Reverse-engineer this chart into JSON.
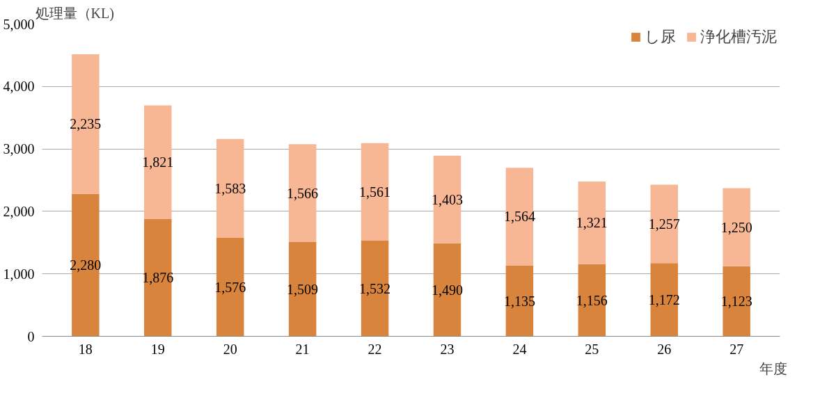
{
  "chart_data": {
    "type": "bar",
    "stacked": true,
    "ylabel": "処理量（KL)",
    "xlabel": "年度",
    "categories": [
      "18",
      "19",
      "20",
      "21",
      "22",
      "23",
      "24",
      "25",
      "26",
      "27"
    ],
    "series": [
      {
        "name": "し尿",
        "color": "#d9843c",
        "values": [
          2280,
          1876,
          1576,
          1509,
          1532,
          1490,
          1135,
          1156,
          1172,
          1123
        ],
        "value_labels": [
          "2,280",
          "1,876",
          "1,576",
          "1,509",
          "1,532",
          "1,490",
          "1,135",
          "1,156",
          "1,172",
          "1,123"
        ]
      },
      {
        "name": "浄化槽汚泥",
        "color": "#f8b794",
        "values": [
          2235,
          1821,
          1583,
          1566,
          1561,
          1403,
          1564,
          1321,
          1257,
          1250
        ],
        "value_labels": [
          "2,235",
          "1,821",
          "1,583",
          "1,566",
          "1,561",
          "1,403",
          "1,564",
          "1,321",
          "1,257",
          "1,250"
        ]
      }
    ],
    "ylim": [
      0,
      5000
    ],
    "yticks": [
      {
        "value": 0,
        "label": "0"
      },
      {
        "value": 1000,
        "label": "1,000"
      },
      {
        "value": 2000,
        "label": "2,000"
      },
      {
        "value": 3000,
        "label": "3,000"
      },
      {
        "value": 4000,
        "label": "4,000"
      },
      {
        "value": 5000,
        "label": "5,000"
      }
    ],
    "grid": "y",
    "legend": "top right"
  }
}
